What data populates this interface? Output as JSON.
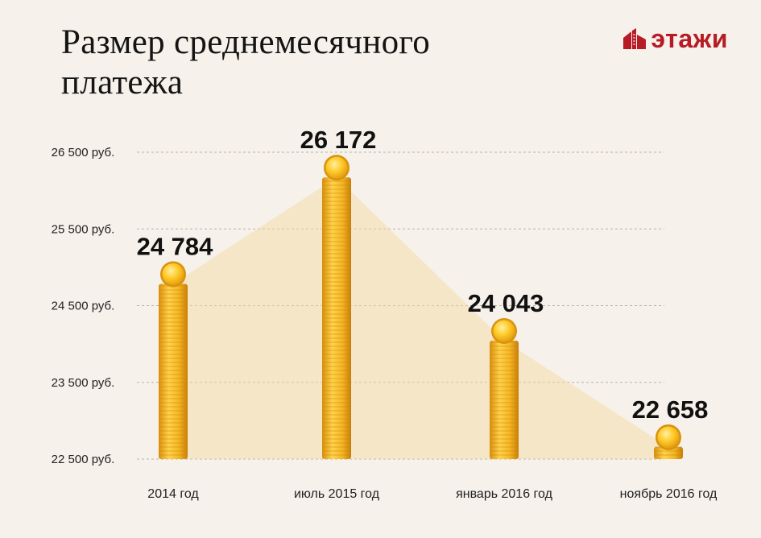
{
  "header": {
    "title_line1": "Размер среднемесячного",
    "title_line2": "платежа"
  },
  "logo": {
    "text": "этажи",
    "icon": "building-icon",
    "color": "#b71c26"
  },
  "colors": {
    "background": "#f6f1ea",
    "coin": "#f0b71f",
    "area": "#f7d9a0",
    "grid": "#b9b3ab"
  },
  "chart_data": {
    "type": "bar",
    "categories": [
      "2014 год",
      "июль 2015 год",
      "январь 2016 год",
      "ноябрь 2016 год"
    ],
    "values": [
      24784,
      26172,
      24043,
      22658
    ],
    "value_labels": [
      "24 784",
      "26 172",
      "24 043",
      "22 658"
    ],
    "y_ticks": [
      {
        "value": 26500,
        "label": "26 500 руб."
      },
      {
        "value": 25500,
        "label": "25 500 руб."
      },
      {
        "value": 24500,
        "label": "24 500 руб."
      },
      {
        "value": 23500,
        "label": "23 500 руб."
      },
      {
        "value": 22500,
        "label": "22 500 руб."
      }
    ],
    "ylim": [
      22500,
      26500
    ],
    "grid": true,
    "title": "Размер среднемесячного платежа",
    "xlabel": "",
    "ylabel": ""
  }
}
